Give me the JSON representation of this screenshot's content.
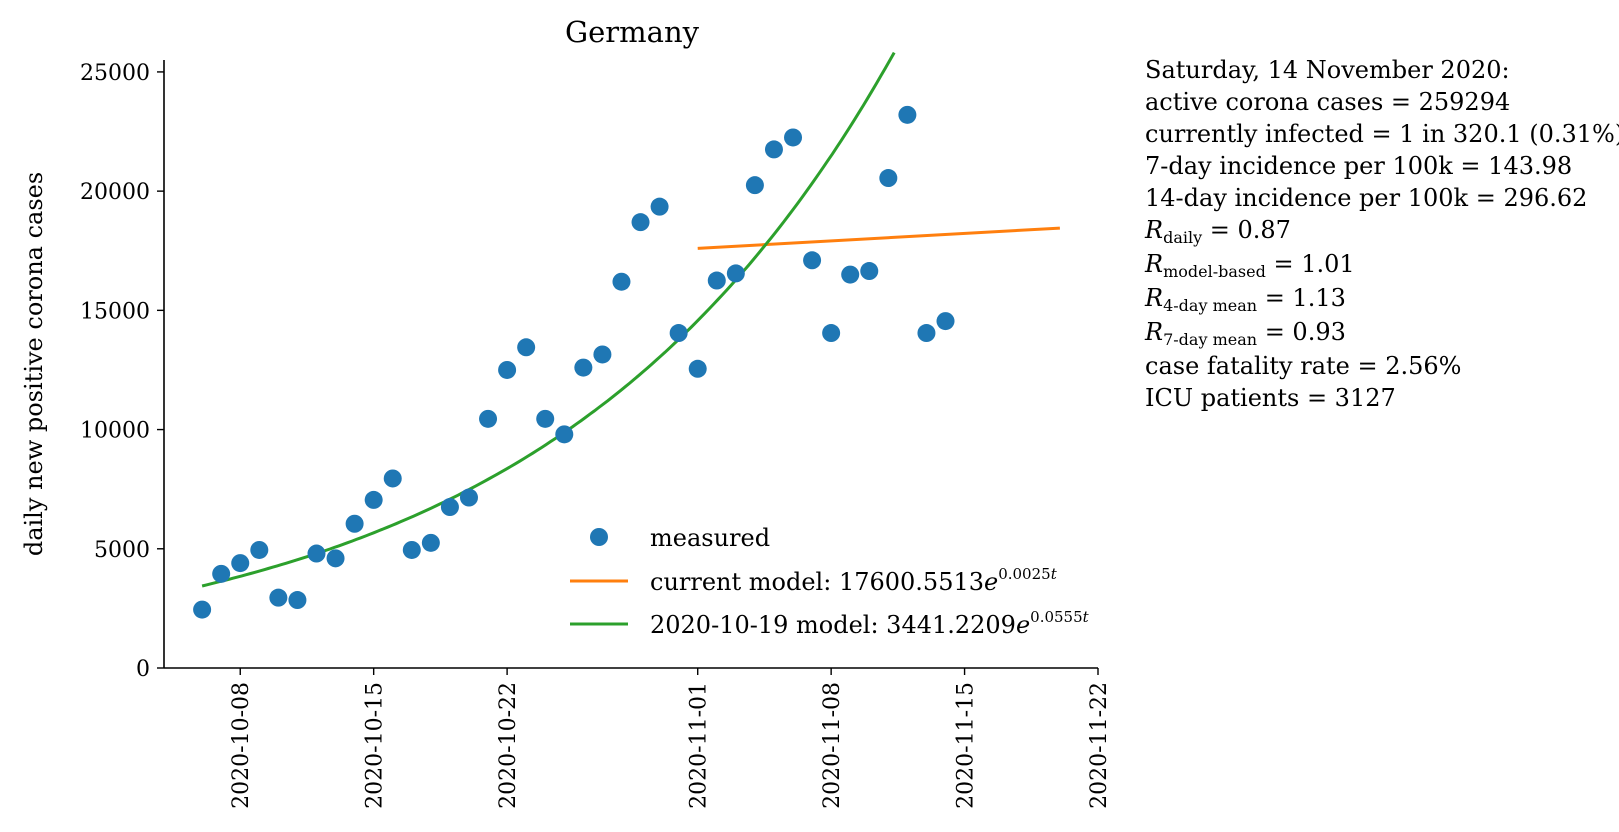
{
  "chart_data": {
    "type": "scatter",
    "title": "Germany",
    "xlabel": "",
    "ylabel": "daily new positive corona cases",
    "xlim": [
      "2020-10-04",
      "2020-11-22"
    ],
    "ylim": [
      0,
      25500
    ],
    "x_ticks": [
      "2020-10-08",
      "2020-10-15",
      "2020-10-22",
      "2020-11-01",
      "2020-11-08",
      "2020-11-15",
      "2020-11-22"
    ],
    "y_ticks": [
      0,
      5000,
      10000,
      15000,
      20000,
      25000
    ],
    "series": [
      {
        "name": "measured",
        "kind": "scatter",
        "color": "#1f77b4",
        "x": [
          "2020-10-06",
          "2020-10-07",
          "2020-10-08",
          "2020-10-09",
          "2020-10-10",
          "2020-10-11",
          "2020-10-12",
          "2020-10-13",
          "2020-10-14",
          "2020-10-15",
          "2020-10-16",
          "2020-10-17",
          "2020-10-18",
          "2020-10-19",
          "2020-10-20",
          "2020-10-21",
          "2020-10-22",
          "2020-10-23",
          "2020-10-24",
          "2020-10-25",
          "2020-10-26",
          "2020-10-27",
          "2020-10-28",
          "2020-10-29",
          "2020-10-30",
          "2020-10-31",
          "2020-11-01",
          "2020-11-02",
          "2020-11-03",
          "2020-11-04",
          "2020-11-05",
          "2020-11-06",
          "2020-11-07",
          "2020-11-08",
          "2020-11-09",
          "2020-11-10",
          "2020-11-11",
          "2020-11-12",
          "2020-11-13",
          "2020-11-14"
        ],
        "y": [
          2450,
          3950,
          4400,
          4950,
          2950,
          2850,
          4800,
          4600,
          6050,
          7050,
          7950,
          4950,
          5250,
          6750,
          7150,
          10450,
          12500,
          13450,
          10450,
          9800,
          12600,
          13150,
          16200,
          18700,
          19350,
          14050,
          12550,
          16250,
          16550,
          20250,
          21750,
          22250,
          17100,
          14050,
          16500,
          16650,
          20550,
          23200,
          14050,
          14550
        ]
      },
      {
        "name": "current model: 17600.5513e^{0.0025t}",
        "kind": "line",
        "color": "#ff7f0e",
        "x": [
          "2020-11-01",
          "2020-11-20"
        ],
        "y": [
          17600,
          18450
        ]
      },
      {
        "name": "2020-10-19 model: 3441.2209e^{0.0555t}",
        "kind": "curve",
        "color": "#2ca02c",
        "model": {
          "a": 3441.2209,
          "b": 0.0555,
          "t0": "2020-10-06",
          "x_start": "2020-10-06",
          "x_end": "2020-11-12"
        }
      }
    ],
    "legend_position": "lower-right",
    "grid": false
  },
  "legend": {
    "measured": "measured",
    "current_prefix": "current model: 17600.5513",
    "current_exp": "0.0025",
    "model_prefix": "2020-10-19 model: 3441.2209",
    "model_exp": "0.0555",
    "e": "e",
    "t": "t"
  },
  "info": {
    "date": "Saturday, 14 November 2020:",
    "active": "active corona cases = 259294",
    "infected": "currently infected = 1 in 320.1 (0.31%)",
    "inc7": "7-day incidence per 100k = 143.98",
    "inc14": "14-day incidence per 100k = 296.62",
    "r_symbol": "R",
    "r_daily_sub": "daily",
    "r_daily_val": " = 0.87",
    "r_model_sub": "model-based",
    "r_model_val": " = 1.01",
    "r_4_sub": "4-day mean",
    "r_4_val": " = 1.13",
    "r_7_sub": "7-day mean",
    "r_7_val": " = 0.93",
    "cfr": "case fatality rate = 2.56%",
    "icu": "ICU patients = 3127"
  }
}
